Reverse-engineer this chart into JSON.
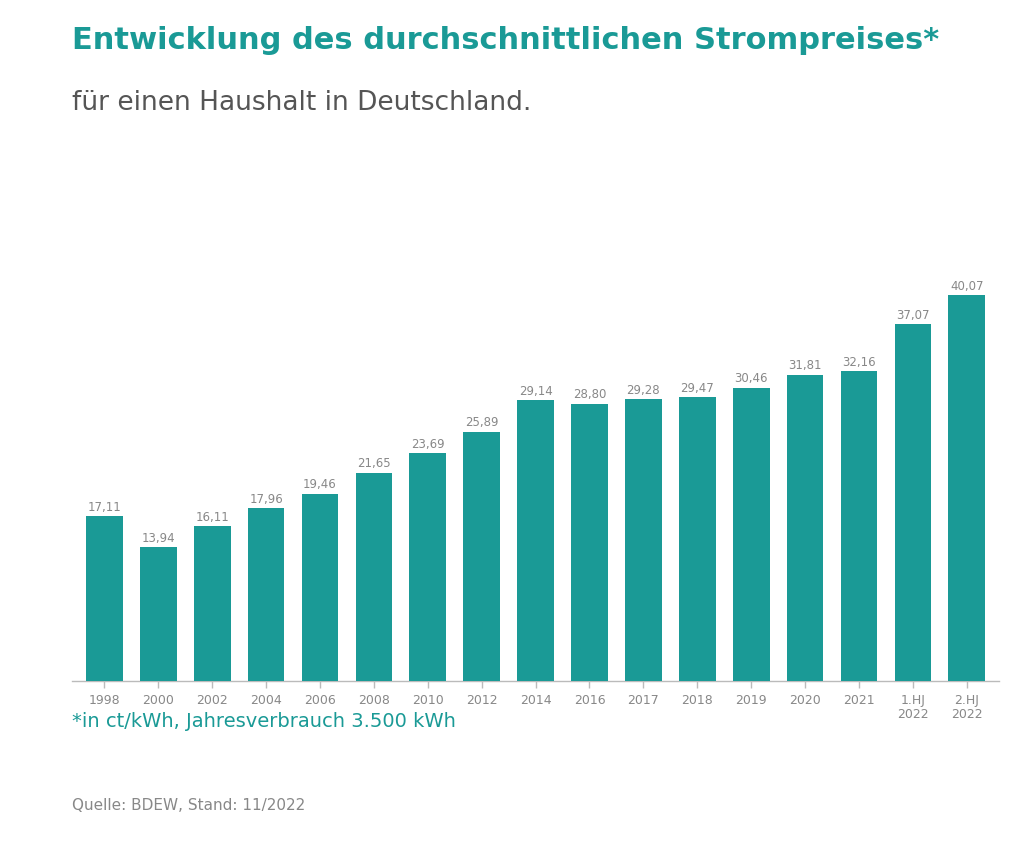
{
  "title_line1": "Entwicklung des durchschnittlichen Strompreises*",
  "title_line2": "für einen Haushalt in Deutschland.",
  "footnote": "*in ct/kWh, Jahresverbrauch 3.500 kWh",
  "source": "Quelle: BDEW, Stand: 11/2022",
  "categories": [
    "1998",
    "2000",
    "2002",
    "2004",
    "2006",
    "2008",
    "2010",
    "2012",
    "2014",
    "2016",
    "2017",
    "2018",
    "2019",
    "2020",
    "2021",
    "1.HJ\n2022",
    "2.HJ\n2022"
  ],
  "values": [
    17.11,
    13.94,
    16.11,
    17.96,
    19.46,
    21.65,
    23.69,
    25.89,
    29.14,
    28.8,
    29.28,
    29.47,
    30.46,
    31.81,
    32.16,
    37.07,
    40.07
  ],
  "bar_color": "#1a9a96",
  "title_color": "#1a9a96",
  "subtitle_color": "#555555",
  "footnote_color": "#1a9a96",
  "source_color": "#888888",
  "background_color": "#ffffff",
  "bar_value_color": "#888888",
  "axis_color": "#bbbbbb",
  "tick_color": "#888888",
  "title_fontsize": 22,
  "subtitle_fontsize": 19,
  "footnote_fontsize": 14,
  "source_fontsize": 11,
  "bar_label_fontsize": 8.5,
  "tick_fontsize": 9
}
